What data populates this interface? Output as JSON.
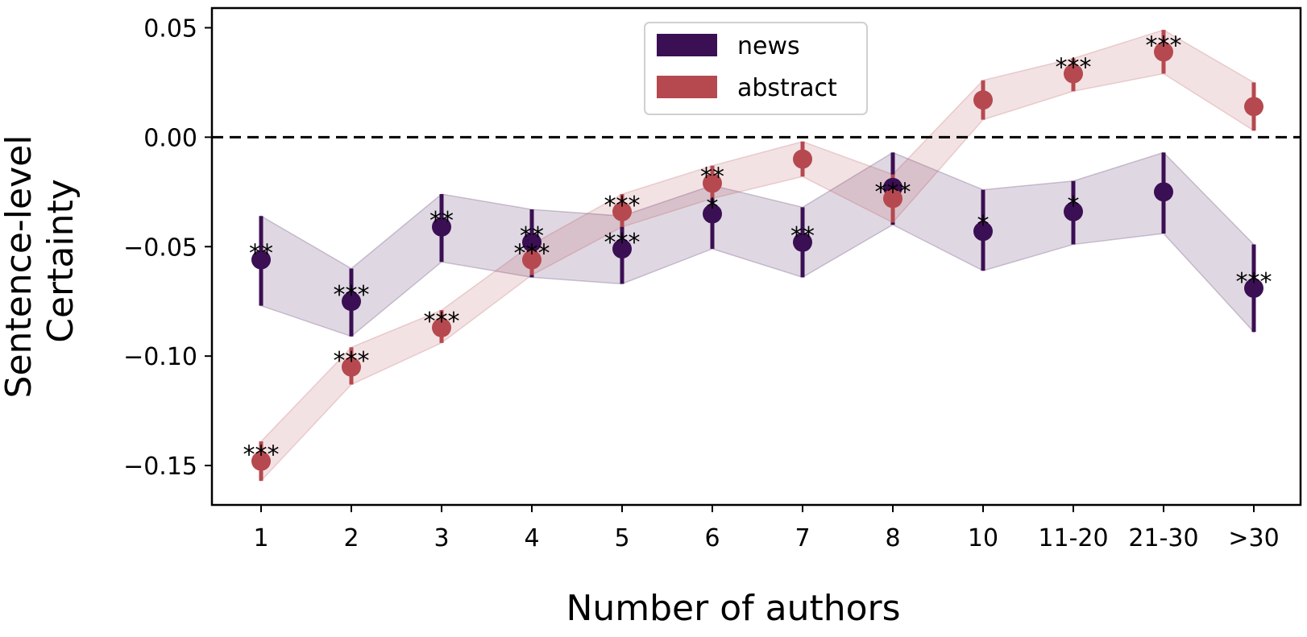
{
  "chart_data": {
    "type": "line",
    "xlabel": "Number of authors",
    "ylabel_lines": [
      "Sentence-level",
      "Certainty"
    ],
    "categories": [
      "1",
      "2",
      "3",
      "4",
      "5",
      "6",
      "7",
      "8",
      "10",
      "11-20",
      "21-30",
      ">30"
    ],
    "yticks": [
      0.05,
      0.0,
      -0.05,
      -0.1,
      -0.15
    ],
    "ytick_labels": [
      "0.05",
      "0.00",
      "−0.05",
      "−0.10",
      "−0.15"
    ],
    "ylim": [
      -0.168,
      0.059
    ],
    "reference_line": 0.0,
    "legend_position": "top-center",
    "series": [
      {
        "name": "news",
        "color": "#3b0f53",
        "values": [
          -0.056,
          -0.075,
          -0.041,
          -0.048,
          -0.051,
          -0.035,
          -0.048,
          -0.023,
          -0.043,
          -0.034,
          -0.025,
          -0.069
        ],
        "lower": [
          -0.077,
          -0.091,
          -0.057,
          -0.064,
          -0.067,
          -0.051,
          -0.064,
          -0.04,
          -0.061,
          -0.049,
          -0.044,
          -0.089
        ],
        "upper": [
          -0.036,
          -0.06,
          -0.026,
          -0.033,
          -0.036,
          -0.022,
          -0.032,
          -0.007,
          -0.024,
          -0.02,
          -0.007,
          -0.049
        ],
        "significance": [
          "**",
          "***",
          "**",
          "**",
          "***",
          "*",
          "**",
          "",
          "*",
          "*",
          "",
          "***"
        ]
      },
      {
        "name": "abstract",
        "color": "#b5494f",
        "values": [
          -0.148,
          -0.105,
          -0.087,
          -0.056,
          -0.034,
          -0.021,
          -0.01,
          -0.028,
          0.017,
          0.029,
          0.039,
          0.014
        ],
        "lower": [
          -0.157,
          -0.113,
          -0.094,
          -0.063,
          -0.041,
          -0.028,
          -0.018,
          -0.039,
          0.008,
          0.021,
          0.029,
          0.003
        ],
        "upper": [
          -0.139,
          -0.096,
          -0.079,
          -0.049,
          -0.026,
          -0.013,
          -0.002,
          -0.017,
          0.026,
          0.036,
          0.049,
          0.025
        ],
        "significance": [
          "***",
          "***",
          "***",
          "***",
          "***",
          "**",
          "",
          "***",
          "",
          "***",
          "***",
          ""
        ]
      }
    ]
  }
}
